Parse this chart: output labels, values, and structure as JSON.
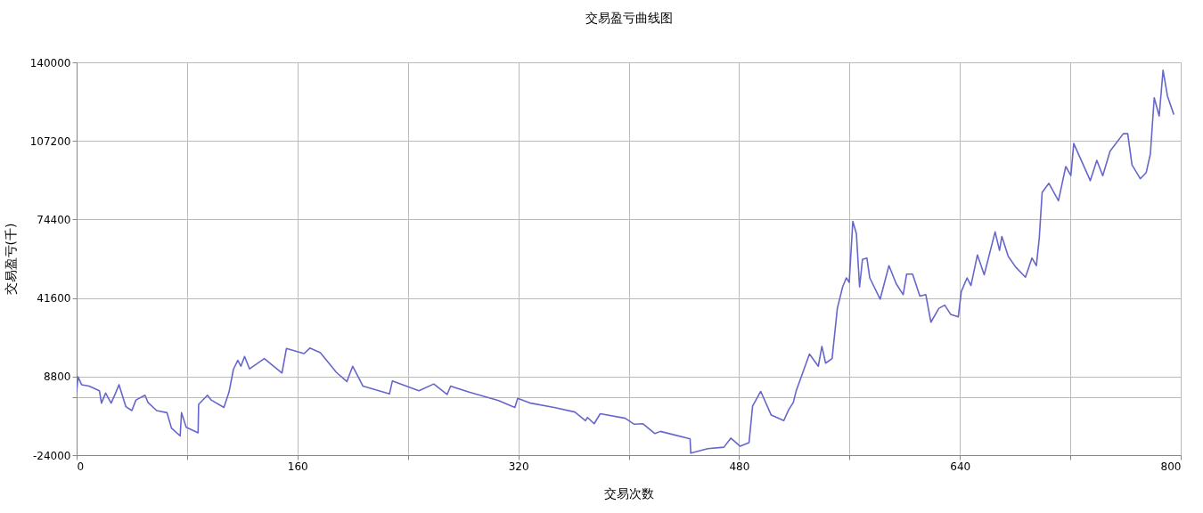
{
  "chart_data": {
    "type": "line",
    "title": "交易盈亏曲线图",
    "xlabel": "交易次数",
    "ylabel": "交易盈亏(千)",
    "xlim": [
      0,
      800
    ],
    "xticks": [
      0,
      {
        "value": 80,
        "label": null
      },
      160,
      {
        "value": 240,
        "label": null
      },
      320,
      {
        "value": 400,
        "label": null
      },
      480,
      {
        "value": 560,
        "label": null
      },
      640,
      {
        "value": 720,
        "label": null
      },
      800
    ],
    "ylim": [
      -24000,
      140000
    ],
    "yticks": [
      -24000,
      {
        "value": 0,
        "label": null
      },
      8800,
      41600,
      74400,
      107200,
      140000
    ],
    "grid": true,
    "marker": "none",
    "line_style": "solid",
    "series": [
      {
        "color": "#6666cc",
        "x": [
          0,
          1,
          3.6,
          9,
          16.5,
          18,
          21,
          25,
          28,
          30.7,
          35.7,
          40,
          43,
          49.5,
          51.7,
          58,
          65.5,
          68.7,
          75,
          76,
          79.4,
          88,
          88.4,
          94.8,
          97.5,
          106.7,
          110.4,
          113.6,
          116.8,
          119,
          121.7,
          125.3,
          136,
          148.8,
          152,
          164.8,
          169,
          176.6,
          188.3,
          195.8,
          200,
          207.5,
          226.7,
          228.8,
          248,
          258.8,
          268.4,
          271,
          284.4,
          305.7,
          317.5,
          319.6,
          329,
          346,
          361,
          368.7,
          370.2,
          375,
          379.4,
          397.5,
          404,
          410.4,
          419,
          423,
          444.5,
          445,
          457.3,
          469,
          474,
          480.8,
          487.2,
          489.8,
          495.7,
          503.3,
          512.4,
          516,
          519.3,
          521.4,
          531,
          537.4,
          540,
          542.7,
          547.4,
          551.2,
          555,
          557.7,
          559.8,
          562.4,
          565,
          567.3,
          569.4,
          572.6,
          574.7,
          582.2,
          588.6,
          593.9,
          598.9,
          601.4,
          605.7,
          611,
          615.3,
          619,
          624.8,
          629,
          633.3,
          638.8,
          641,
          645.2,
          648,
          652.7,
          657.6,
          665.5,
          668.7,
          670.4,
          675,
          680.4,
          687.5,
          692.2,
          695.4,
          697.5,
          699.6,
          704.5,
          711.4,
          716.7,
          720.4,
          722.5,
          734.5,
          739.2,
          743.5,
          748.8,
          758.4,
          761.6,
          764.7,
          770.7,
          775,
          778,
          780.8,
          784.4,
          787.2,
          790.4,
          795
        ],
        "values": [
          2400,
          8700,
          5400,
          4800,
          2900,
          -2300,
          1900,
          -2300,
          1600,
          5400,
          -3800,
          -5400,
          -1000,
          1000,
          -2000,
          -5400,
          -6300,
          -12700,
          -16000,
          -6300,
          -12400,
          -14700,
          -2800,
          1000,
          -1000,
          -4100,
          2300,
          11800,
          15600,
          13100,
          17200,
          12000,
          16300,
          10300,
          20500,
          18400,
          20700,
          18800,
          10500,
          6700,
          13100,
          4800,
          1600,
          7000,
          2900,
          5700,
          1300,
          4800,
          2300,
          -1200,
          -4100,
          -300,
          -2300,
          -4100,
          -6000,
          -9600,
          -8300,
          -10900,
          -6700,
          -8600,
          -11100,
          -10900,
          -15000,
          -14100,
          -17200,
          -23200,
          -21300,
          -20700,
          -16900,
          -20300,
          -18800,
          -3500,
          2600,
          -7300,
          -9600,
          -5000,
          -2000,
          2900,
          18200,
          13100,
          21400,
          14400,
          16300,
          37300,
          46200,
          50000,
          48100,
          73600,
          68500,
          46200,
          57700,
          58300,
          50000,
          41100,
          55100,
          47500,
          43000,
          51600,
          51600,
          42400,
          43000,
          31500,
          37300,
          38600,
          34800,
          33700,
          44300,
          50000,
          46800,
          59600,
          51300,
          69200,
          61500,
          67300,
          59000,
          54500,
          50300,
          58300,
          55100,
          66600,
          85700,
          89500,
          82200,
          96500,
          92700,
          106100,
          90600,
          99100,
          92700,
          102900,
          110200,
          110200,
          97200,
          91400,
          94000,
          101700,
          125200,
          117600,
          136700,
          125900,
          118200
        ]
      }
    ]
  }
}
